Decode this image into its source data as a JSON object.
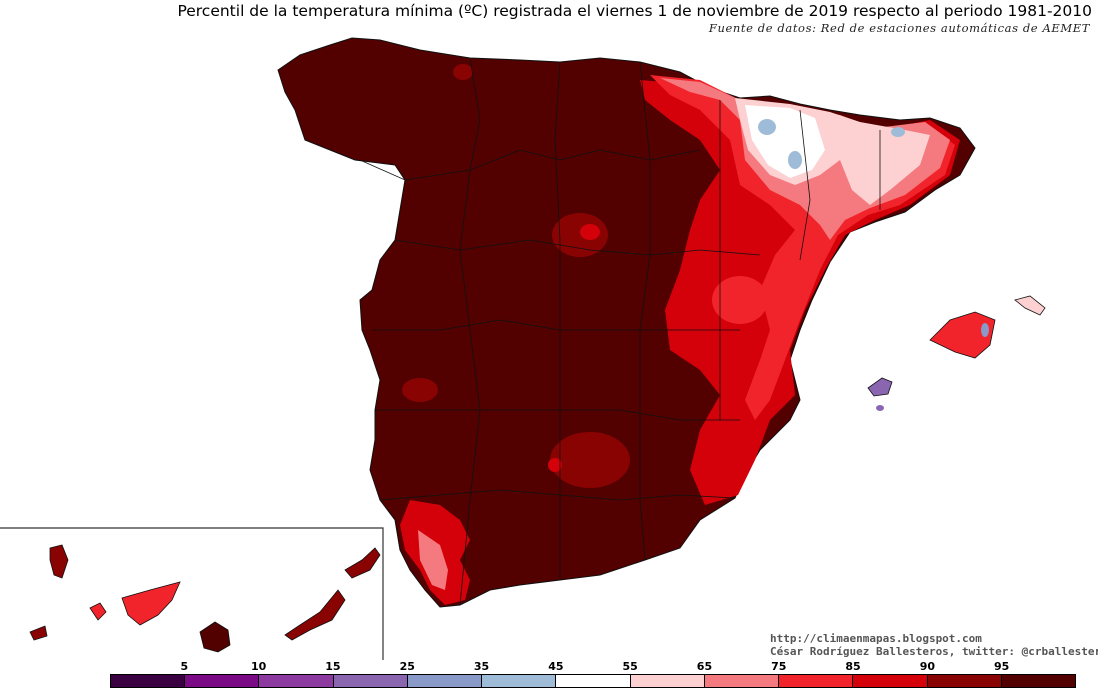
{
  "title": "Percentil de la temperatura mínima (ºC) registrada el viernes 1 de noviembre de 2019 respecto al periodo 1981-2010",
  "source": "Fuente de datos: Red de estaciones automáticas de AEMET",
  "credits": {
    "blog": "http://climaenmapas.blogspot.com",
    "author": "César Rodríguez Ballesteros, twitter: @crballesteros"
  },
  "legend": {
    "ticks": [
      "5",
      "10",
      "15",
      "25",
      "35",
      "45",
      "55",
      "65",
      "75",
      "85",
      "90",
      "95"
    ],
    "colors": [
      "#3b0041",
      "#7a0a85",
      "#8c3aa0",
      "#8a66b0",
      "#8a9ac8",
      "#9ebbd8",
      "#ffffff",
      "#fdd0d2",
      "#f47a7f",
      "#f2242b",
      "#d4000a",
      "#8a0303",
      "#520000"
    ]
  },
  "map": {
    "region": "España",
    "inset": "Canarias",
    "colors": {
      "p95plus": "#520000",
      "p90_95": "#8a0303",
      "p85_90": "#d4000a",
      "p75_85": "#f2242b",
      "p65_75": "#f47a7f",
      "p55_65": "#fdd0d2",
      "p45_55": "#ffffff",
      "p35_45": "#9ebbd8",
      "p25_35": "#8a9ac8",
      "p15_25": "#8a66b0",
      "border": "#111111"
    }
  }
}
